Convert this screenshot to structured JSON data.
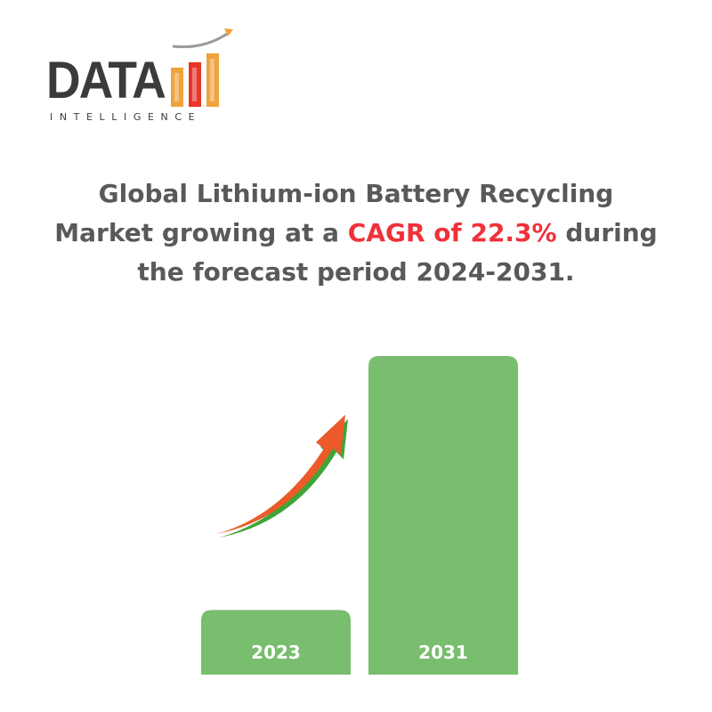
{
  "logo": {
    "word": "DATA",
    "subtitle": "INTELLIGENCE",
    "colors": {
      "text": "#3b3b3b",
      "accent": "#f0a23c",
      "red": "#e8342a"
    }
  },
  "headline": {
    "part1": "Global Lithium-ion Battery Recycling Market growing at a ",
    "highlight": "CAGR of 22.3%",
    "part2": " during the forecast period 2024-2031.",
    "colors": {
      "text": "#595959",
      "highlight": "#f0313a"
    }
  },
  "chart_data": {
    "type": "bar",
    "categories": [
      "2023",
      "2031"
    ],
    "values": [
      1.0,
      4.93
    ],
    "title": "",
    "xlabel": "",
    "ylabel": "",
    "annotations": [
      "growth-arrow"
    ],
    "colors": {
      "bar": "#79bd6e",
      "label": "#ffffff",
      "arrow": "#eb5a28",
      "arrow_shadow": "#3fa537"
    }
  }
}
